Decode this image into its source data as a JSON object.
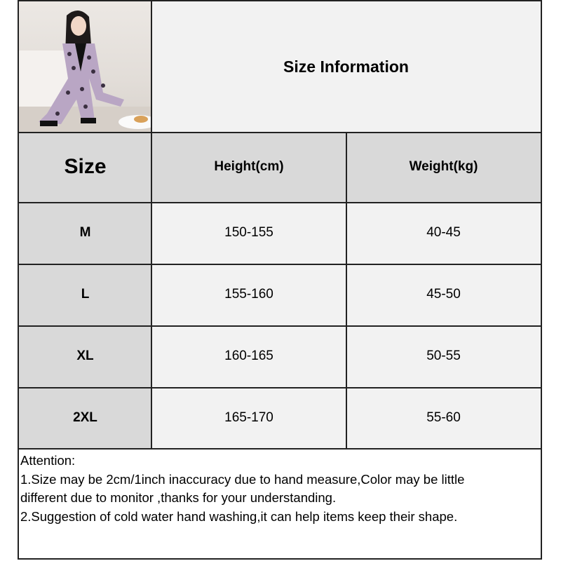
{
  "title": "Size Information",
  "photo": {
    "subject": "woman-in-pajamas-photo"
  },
  "table": {
    "headers": [
      "Size",
      "Height(cm)",
      "Weight(kg)"
    ],
    "rows": [
      {
        "size": "M",
        "height": "150-155",
        "weight": "40-45"
      },
      {
        "size": "L",
        "height": "155-160",
        "weight": "45-50"
      },
      {
        "size": "XL",
        "height": "160-165",
        "weight": "50-55"
      },
      {
        "size": "2XL",
        "height": "165-170",
        "weight": "55-60"
      }
    ]
  },
  "attention": {
    "heading": "Attention:",
    "lines": [
      "1.Size may be 2cm/1inch inaccuracy due to hand measure,Color may be little",
      "different due to monitor ,thanks for your understanding.",
      "2.Suggestion of cold water hand washing,it can help items keep their shape."
    ]
  },
  "colors": {
    "header_bg": "#d9d9d9",
    "cell_bg": "#f2f2f2",
    "border": "#222222"
  }
}
